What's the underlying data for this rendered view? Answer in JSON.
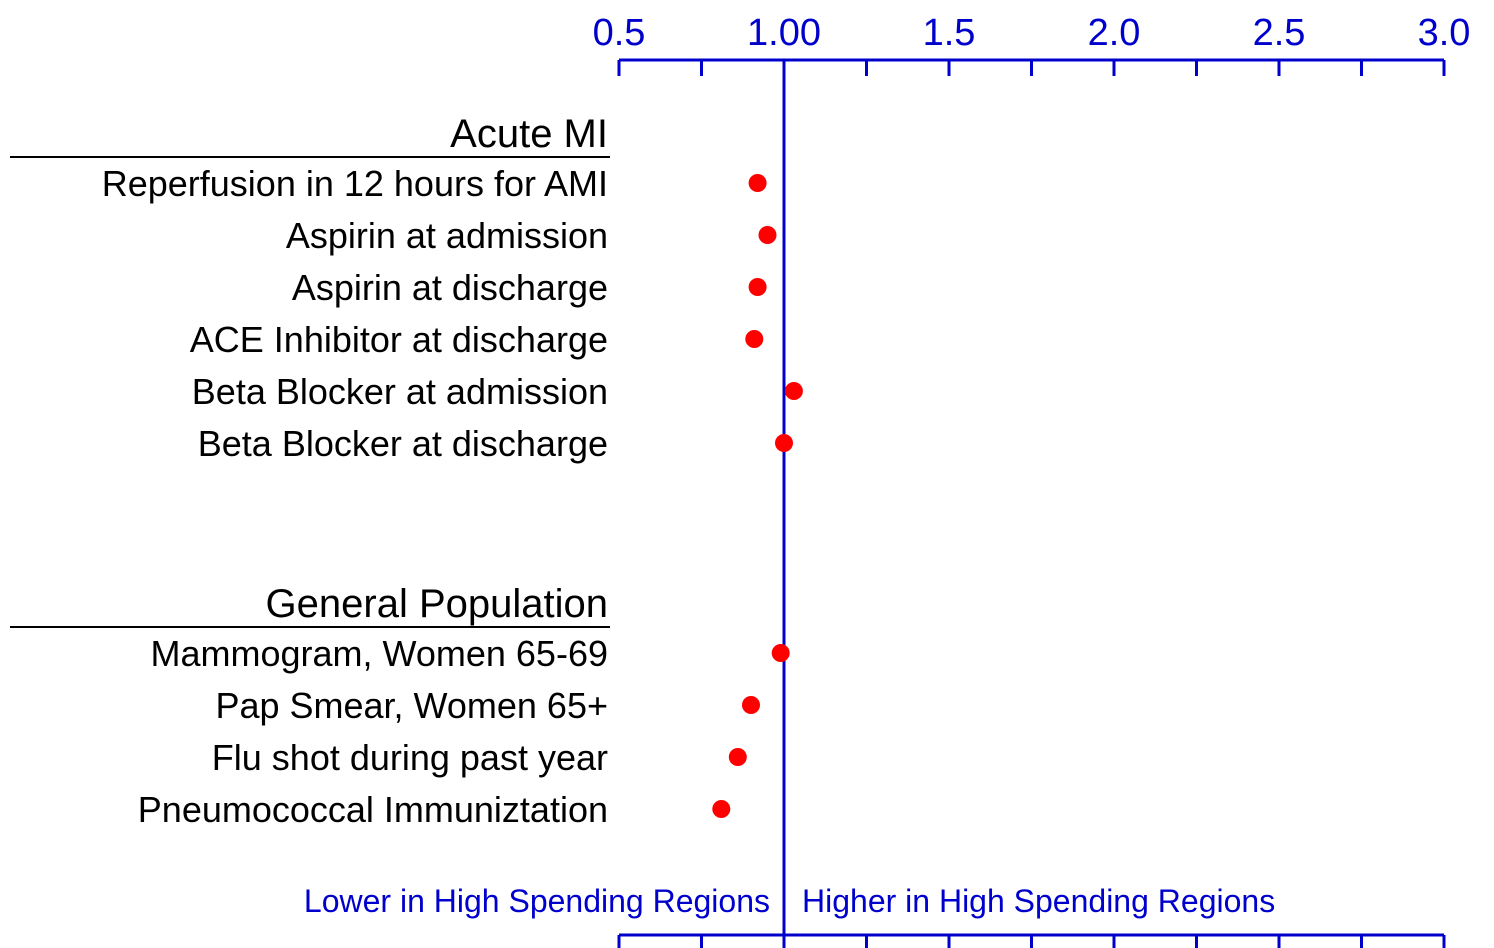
{
  "chart_data": {
    "type": "dot",
    "groups": [
      {
        "name": "Acute MI",
        "categories": [
          "Reperfusion in 12 hours for AMI",
          "Aspirin at admission",
          "Aspirin at discharge",
          "ACE Inhibitor at discharge",
          "Beta Blocker at admission",
          "Beta Blocker at discharge"
        ],
        "values": [
          0.92,
          0.95,
          0.92,
          0.91,
          1.03,
          1.0
        ]
      },
      {
        "name": "General Population",
        "categories": [
          "Mammogram, Women 65-69",
          "Pap Smear, Women 65+",
          "Flu shot during past year",
          "Pneumococcal Immuniztation"
        ],
        "values": [
          0.99,
          0.9,
          0.86,
          0.81
        ]
      }
    ],
    "color": "#ff0000",
    "axis_color": "#0000cc",
    "xlim": [
      0.5,
      3.0
    ],
    "xticks": [
      0.5,
      {
        "value": 1,
        "label": "1.00"
      },
      1.5,
      {
        "value": 2,
        "label": "2.0"
      },
      2.5,
      {
        "value": 3,
        "label": "3.0"
      }
    ],
    "xminorticks": [
      0.75,
      1.25,
      1.75,
      2.25,
      2.75
    ],
    "refline": 1,
    "annotations": [
      "Lower in High Spending Regions",
      "Higher in High Spending Regions"
    ]
  }
}
